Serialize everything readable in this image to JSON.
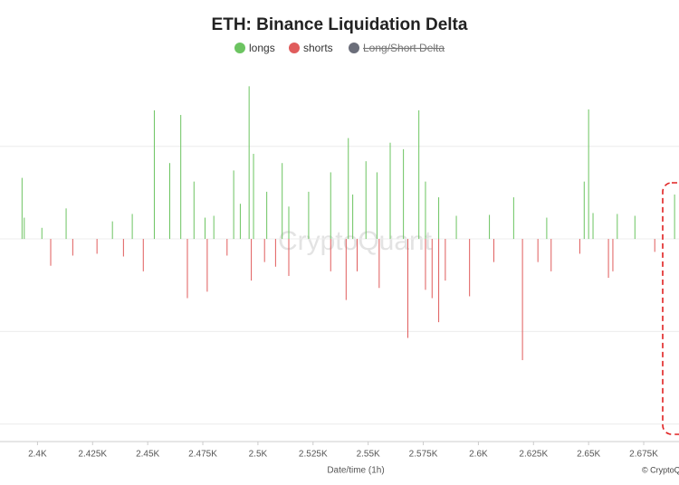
{
  "chart_data": {
    "type": "bar",
    "title": "ETH: Binance Liquidation Delta",
    "x_label": "Date/time (1h)",
    "watermark": "CryptoQuant",
    "credit": "© CryptoQuant",
    "xlim": [
      2383,
      2691
    ],
    "xticks": [
      {
        "value": 2400,
        "label": "2.4K"
      },
      {
        "value": 2425,
        "label": "2.425K"
      },
      {
        "value": 2450,
        "label": "2.45K"
      },
      {
        "value": 2475,
        "label": "2.475K"
      },
      {
        "value": 2500,
        "label": "2.5K"
      },
      {
        "value": 2525,
        "label": "2.525K"
      },
      {
        "value": 2550,
        "label": "2.55K"
      },
      {
        "value": 2575,
        "label": "2.575K"
      },
      {
        "value": 2600,
        "label": "2.6K"
      },
      {
        "value": 2625,
        "label": "2.625K"
      },
      {
        "value": 2650,
        "label": "2.65K"
      },
      {
        "value": 2675,
        "label": "2.675K"
      }
    ],
    "ylim": [
      -2.19,
      1.8
    ],
    "ygrid": [
      -2,
      -1,
      0,
      1
    ],
    "grid": true,
    "series": [
      {
        "name": "longs",
        "color": "#6cc461",
        "x": [
          2393,
          2394,
          2402,
          2413,
          2434,
          2443,
          2453,
          2460,
          2465,
          2471,
          2476,
          2480,
          2489,
          2492,
          2496,
          2498,
          2504,
          2511,
          2514,
          2523,
          2533,
          2541,
          2543,
          2549,
          2554,
          2560,
          2566,
          2573,
          2576,
          2582,
          2590,
          2605,
          2616,
          2631,
          2648,
          2650,
          2652,
          2663,
          2671,
          2689
        ],
        "values": [
          0.66,
          0.23,
          0.12,
          0.33,
          0.19,
          0.27,
          1.39,
          0.82,
          1.34,
          0.62,
          0.23,
          0.25,
          0.74,
          0.38,
          1.65,
          0.92,
          0.51,
          0.82,
          0.35,
          0.51,
          0.72,
          1.09,
          0.48,
          0.84,
          0.72,
          1.04,
          0.97,
          1.39,
          0.62,
          0.45,
          0.25,
          0.26,
          0.45,
          0.23,
          0.62,
          1.4,
          0.28,
          0.27,
          0.25,
          0.48
        ]
      },
      {
        "name": "shorts",
        "color": "#e05c5c",
        "x": [
          2406,
          2416,
          2427,
          2439,
          2448,
          2468,
          2477,
          2486,
          2497,
          2503,
          2508,
          2514,
          2533,
          2540,
          2545,
          2555,
          2568,
          2576,
          2579,
          2582,
          2585,
          2596,
          2607,
          2620,
          2627,
          2633,
          2646,
          2659,
          2661,
          2680
        ],
        "values": [
          -0.29,
          -0.18,
          -0.16,
          -0.19,
          -0.35,
          -0.64,
          -0.57,
          -0.18,
          -0.45,
          -0.25,
          -0.3,
          -0.4,
          -0.35,
          -0.66,
          -0.35,
          -0.53,
          -1.07,
          -0.55,
          -0.64,
          -0.9,
          -0.45,
          -0.62,
          -0.25,
          -1.31,
          -0.25,
          -0.35,
          -0.16,
          -0.42,
          -0.35,
          -0.14
        ]
      },
      {
        "name": "Long/Short Delta",
        "color": "#6b6e7a",
        "visible": false
      }
    ]
  }
}
